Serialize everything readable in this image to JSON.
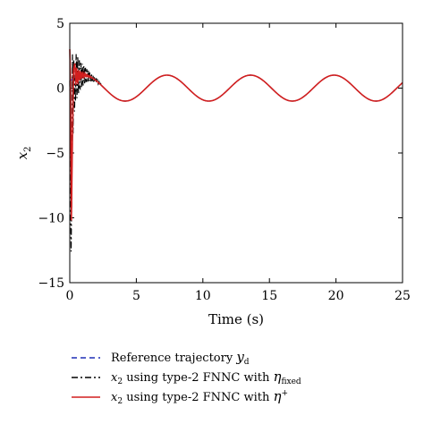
{
  "chart_data": {
    "type": "line",
    "xlabel": "Time (s)",
    "ylabel": "x",
    "ylabel_sub": "2",
    "xlim": [
      0,
      25
    ],
    "ylim": [
      -15,
      5
    ],
    "x_ticks": [
      0,
      5,
      10,
      15,
      20,
      25
    ],
    "y_ticks": [
      5,
      0,
      -5,
      -10,
      -15
    ],
    "grid": false,
    "legend_position": "below",
    "signal": {
      "steady_amplitude": 1.0,
      "steady_period": 6.28,
      "settle_time": 2.4
    },
    "series": [
      {
        "key": "reference",
        "color": "#1f2fb5",
        "dash": "dashed",
        "legend": {
          "main": "Reference trajectory ",
          "math": "y",
          "sub": "d",
          "sup": ""
        }
      },
      {
        "key": "fixed",
        "color": "#000000",
        "dash": "dashdot",
        "initial_dip": -12.6,
        "legend": {
          "main": "x",
          "sub_main": "2",
          "rest": " using type-2 FNNC with ",
          "math": "η",
          "sub": "fixed",
          "sup": ""
        }
      },
      {
        "key": "adaptive",
        "color": "#d21f1f",
        "dash": "solid",
        "initial_dip": -10.2,
        "legend": {
          "main": "x",
          "sub_main": "2",
          "rest": " using type-2 FNNC with ",
          "math": "η",
          "sub": "",
          "sup": "+"
        }
      }
    ]
  }
}
